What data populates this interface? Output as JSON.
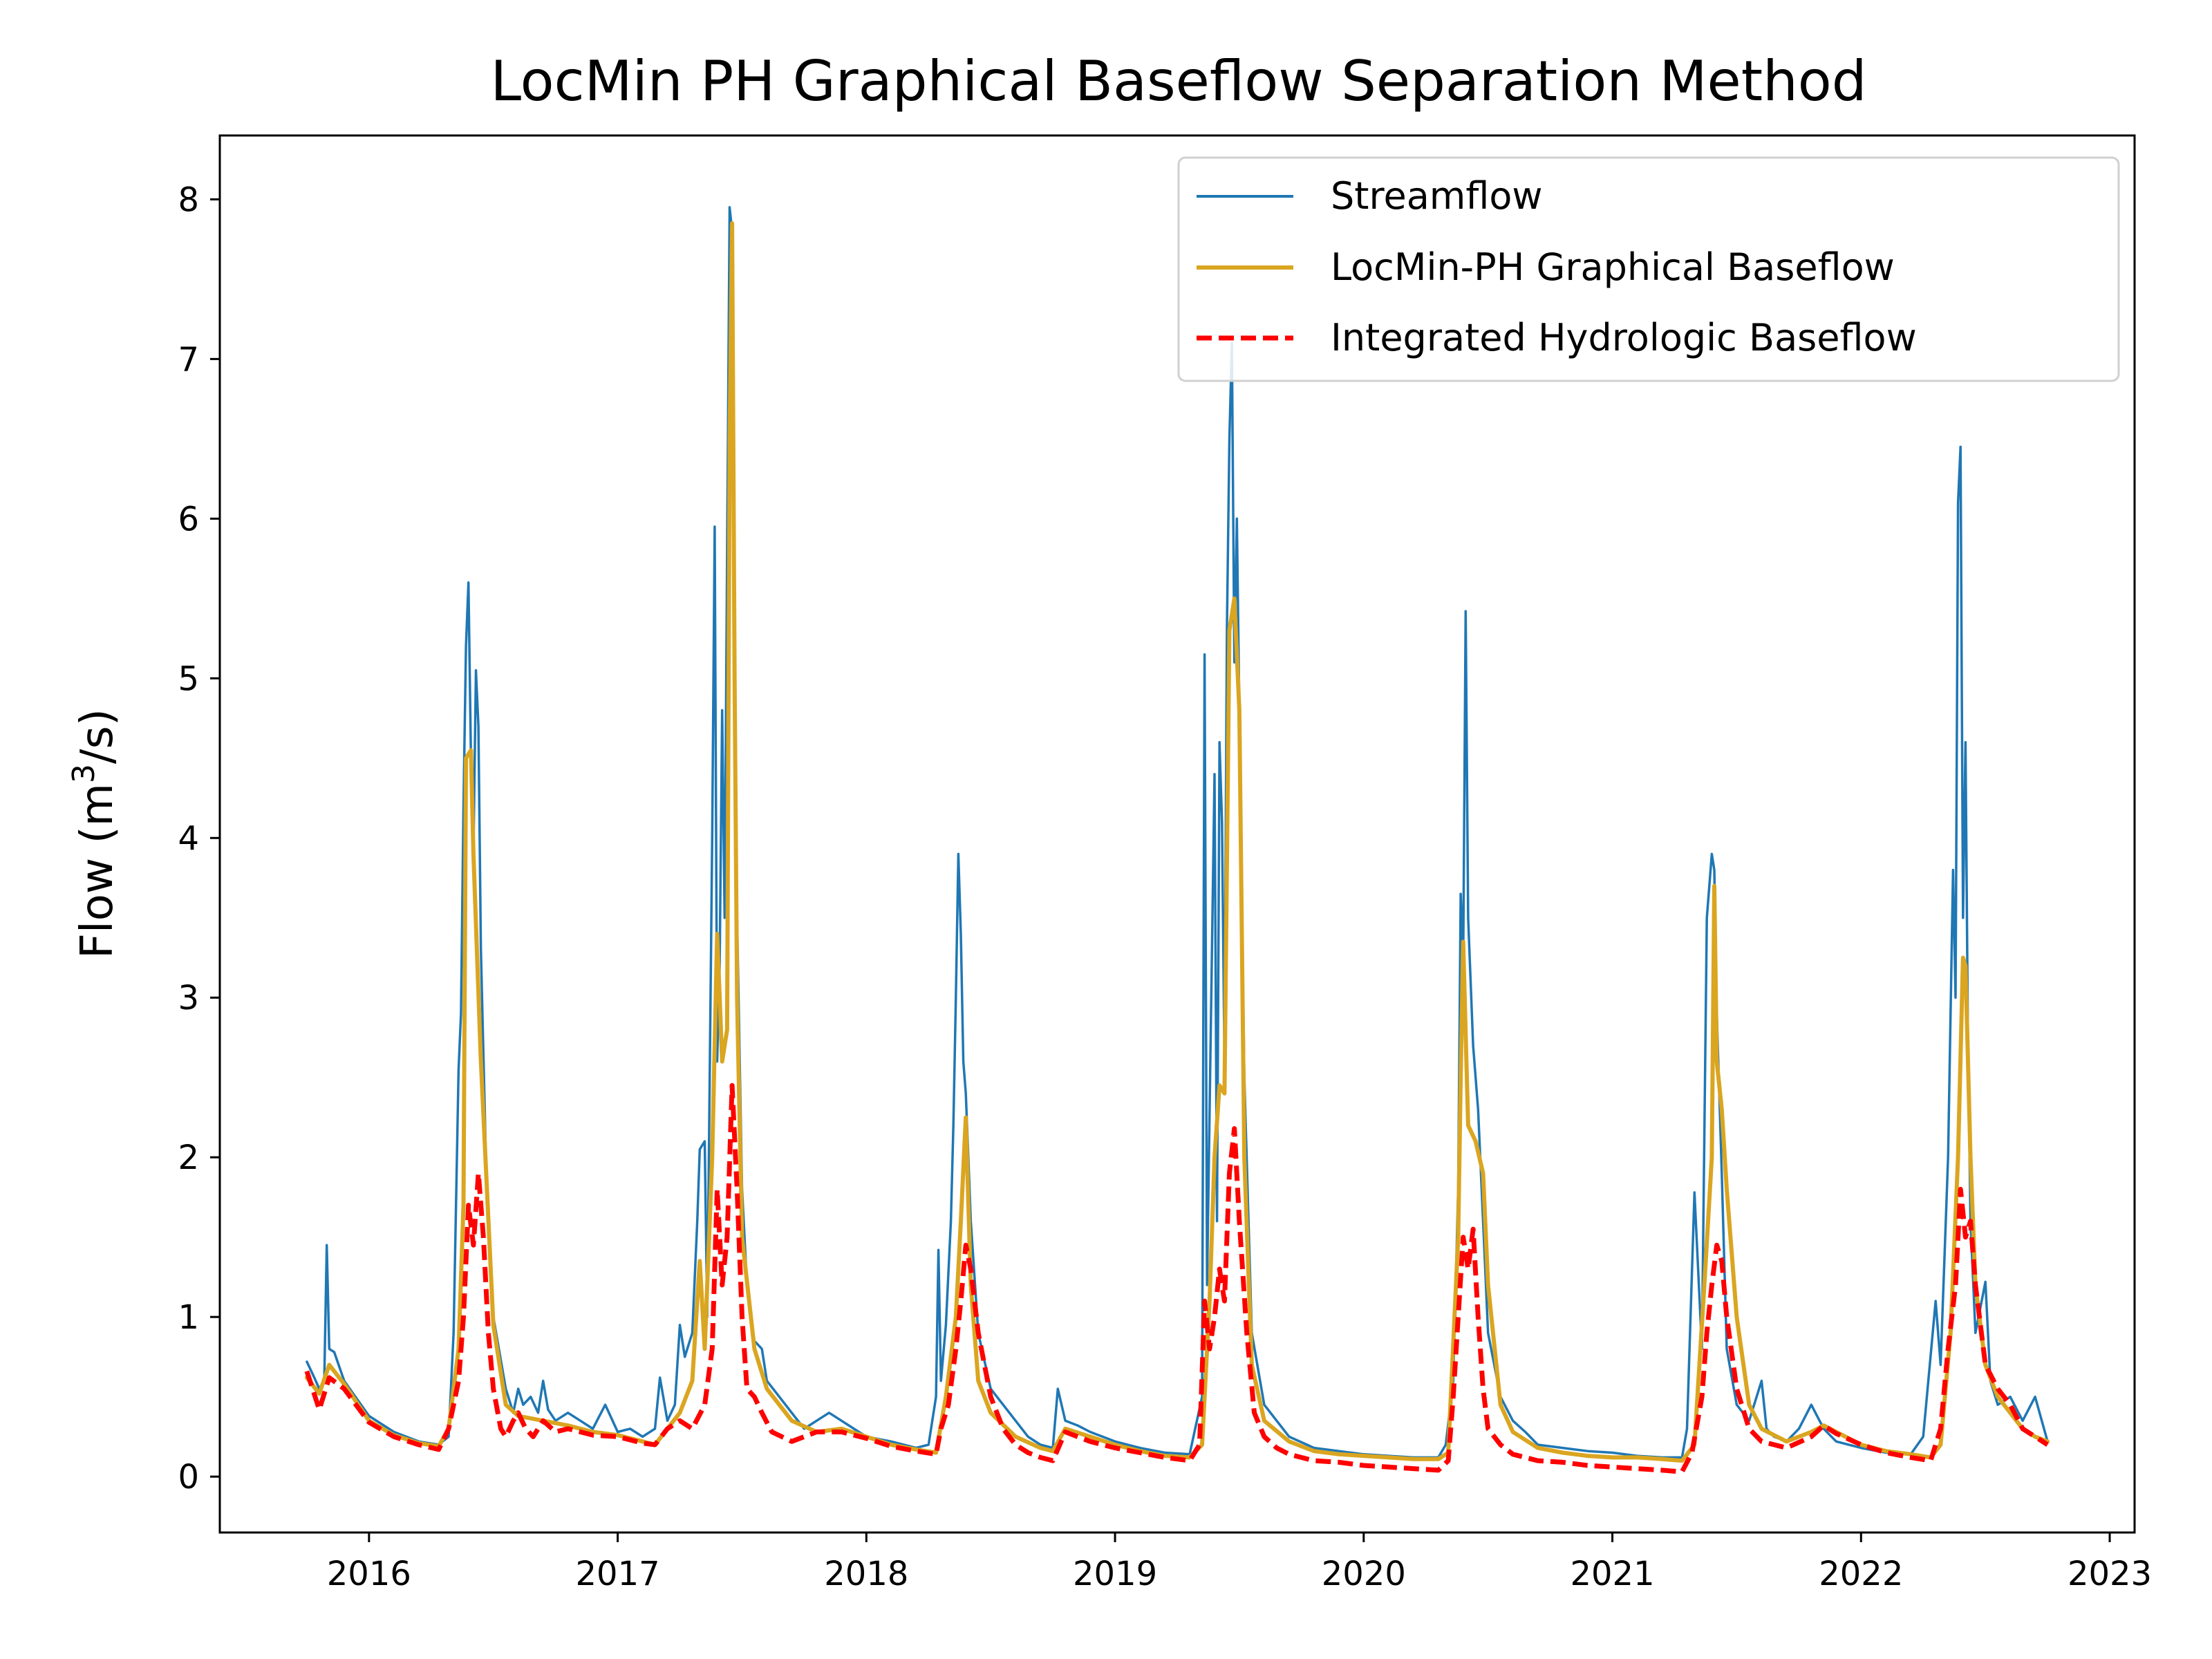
{
  "chart_data": {
    "type": "line",
    "title": "LocMin PH Graphical Baseflow Separation Method",
    "xlabel": "",
    "ylabel": "Flow (m³/s)",
    "ylabel_parts": {
      "before": "Flow (m",
      "sup": "3",
      "after": "/s)"
    },
    "xlim": [
      2015.4,
      2023.1
    ],
    "ylim": [
      -0.35,
      8.4
    ],
    "x_ticks": [
      2016,
      2017,
      2018,
      2019,
      2020,
      2021,
      2022,
      2023
    ],
    "x_tick_labels": [
      "2016",
      "2017",
      "2018",
      "2019",
      "2020",
      "2021",
      "2022",
      "2023"
    ],
    "y_ticks": [
      0,
      1,
      2,
      3,
      4,
      5,
      6,
      7,
      8
    ],
    "y_tick_labels": [
      "0",
      "1",
      "2",
      "3",
      "4",
      "5",
      "6",
      "7",
      "8"
    ],
    "grid": false,
    "legend_position": "top-right",
    "series": [
      {
        "name": "Streamflow",
        "color": "#1f77b4",
        "style": "solid",
        "x": [
          2015.75,
          2015.78,
          2015.8,
          2015.82,
          2015.83,
          2015.84,
          2015.86,
          2015.9,
          2016.0,
          2016.1,
          2016.2,
          2016.28,
          2016.32,
          2016.34,
          2016.36,
          2016.37,
          2016.38,
          2016.39,
          2016.4,
          2016.41,
          2016.42,
          2016.43,
          2016.44,
          2016.45,
          2016.47,
          2016.5,
          2016.55,
          2016.58,
          2016.6,
          2016.62,
          2016.65,
          2016.68,
          2016.7,
          2016.72,
          2016.75,
          2016.8,
          2016.85,
          2016.9,
          2016.95,
          2017.0,
          2017.05,
          2017.1,
          2017.15,
          2017.17,
          2017.2,
          2017.23,
          2017.25,
          2017.27,
          2017.3,
          2017.32,
          2017.33,
          2017.35,
          2017.36,
          2017.38,
          2017.39,
          2017.4,
          2017.41,
          2017.42,
          2017.43,
          2017.44,
          2017.45,
          2017.46,
          2017.47,
          2017.48,
          2017.5,
          2017.52,
          2017.55,
          2017.58,
          2017.6,
          2017.65,
          2017.7,
          2017.75,
          2017.8,
          2017.85,
          2017.9,
          2017.95,
          2018.0,
          2018.1,
          2018.2,
          2018.25,
          2018.28,
          2018.29,
          2018.3,
          2018.32,
          2018.34,
          2018.35,
          2018.36,
          2018.37,
          2018.38,
          2018.39,
          2018.4,
          2018.42,
          2018.45,
          2018.5,
          2018.55,
          2018.6,
          2018.65,
          2018.7,
          2018.75,
          2018.77,
          2018.8,
          2018.85,
          2018.9,
          2019.0,
          2019.1,
          2019.2,
          2019.3,
          2019.35,
          2019.36,
          2019.37,
          2019.4,
          2019.41,
          2019.42,
          2019.43,
          2019.44,
          2019.45,
          2019.46,
          2019.47,
          2019.48,
          2019.49,
          2019.5,
          2019.52,
          2019.55,
          2019.6,
          2019.65,
          2019.7,
          2019.8,
          2019.9,
          2020.0,
          2020.1,
          2020.2,
          2020.3,
          2020.33,
          2020.36,
          2020.38,
          2020.39,
          2020.4,
          2020.41,
          2020.42,
          2020.44,
          2020.46,
          2020.5,
          2020.55,
          2020.6,
          2020.65,
          2020.7,
          2020.8,
          2020.9,
          2021.0,
          2021.1,
          2021.2,
          2021.28,
          2021.3,
          2021.33,
          2021.36,
          2021.38,
          2021.4,
          2021.41,
          2021.42,
          2021.44,
          2021.46,
          2021.5,
          2021.55,
          2021.6,
          2021.62,
          2021.65,
          2021.7,
          2021.75,
          2021.8,
          2021.85,
          2021.9,
          2022.0,
          2022.1,
          2022.2,
          2022.25,
          2022.3,
          2022.32,
          2022.35,
          2022.37,
          2022.38,
          2022.39,
          2022.4,
          2022.41,
          2022.42,
          2022.43,
          2022.44,
          2022.46,
          2022.5,
          2022.52,
          2022.55,
          2022.6,
          2022.65,
          2022.7,
          2022.75
        ],
        "y": [
          0.72,
          0.62,
          0.55,
          0.6,
          1.45,
          0.8,
          0.78,
          0.6,
          0.38,
          0.28,
          0.22,
          0.2,
          0.25,
          0.9,
          2.55,
          2.9,
          4.2,
          5.2,
          5.6,
          4.5,
          3.9,
          5.05,
          4.7,
          3.3,
          2.0,
          1.0,
          0.55,
          0.4,
          0.55,
          0.45,
          0.5,
          0.4,
          0.6,
          0.42,
          0.35,
          0.4,
          0.35,
          0.3,
          0.45,
          0.28,
          0.3,
          0.25,
          0.3,
          0.62,
          0.35,
          0.45,
          0.95,
          0.75,
          0.9,
          1.6,
          2.05,
          2.1,
          1.0,
          4.0,
          5.95,
          2.6,
          3.2,
          4.8,
          3.5,
          5.8,
          7.95,
          7.8,
          5.0,
          3.5,
          1.8,
          1.2,
          0.85,
          0.8,
          0.6,
          0.5,
          0.4,
          0.3,
          0.35,
          0.4,
          0.35,
          0.3,
          0.25,
          0.22,
          0.18,
          0.2,
          0.5,
          1.42,
          0.6,
          0.95,
          1.6,
          2.2,
          3.0,
          3.9,
          3.4,
          2.6,
          2.4,
          1.6,
          0.9,
          0.55,
          0.45,
          0.35,
          0.25,
          0.2,
          0.18,
          0.55,
          0.35,
          0.32,
          0.28,
          0.22,
          0.18,
          0.15,
          0.14,
          0.5,
          5.15,
          1.2,
          4.4,
          1.6,
          4.6,
          4.1,
          2.6,
          5.3,
          6.5,
          7.1,
          5.1,
          6.0,
          4.8,
          2.5,
          0.9,
          0.45,
          0.35,
          0.25,
          0.18,
          0.16,
          0.14,
          0.13,
          0.12,
          0.12,
          0.2,
          0.6,
          1.8,
          3.65,
          3.2,
          5.42,
          3.5,
          2.7,
          2.3,
          0.9,
          0.5,
          0.35,
          0.28,
          0.2,
          0.18,
          0.16,
          0.15,
          0.13,
          0.12,
          0.12,
          0.3,
          1.78,
          0.8,
          3.5,
          3.9,
          3.8,
          2.9,
          1.9,
          0.8,
          0.45,
          0.35,
          0.6,
          0.3,
          0.25,
          0.22,
          0.3,
          0.45,
          0.3,
          0.22,
          0.18,
          0.15,
          0.14,
          0.25,
          1.1,
          0.7,
          2.0,
          3.8,
          3.0,
          6.1,
          6.45,
          3.5,
          4.6,
          2.7,
          1.6,
          0.9,
          1.22,
          0.6,
          0.45,
          0.5,
          0.35,
          0.5,
          0.22
        ]
      },
      {
        "name": "LocMin-PH Graphical Baseflow",
        "color": "#daa520",
        "style": "solid",
        "x": [
          2015.75,
          2015.8,
          2015.84,
          2015.9,
          2016.0,
          2016.1,
          2016.2,
          2016.28,
          2016.32,
          2016.36,
          2016.38,
          2016.39,
          2016.41,
          2016.42,
          2016.45,
          2016.5,
          2016.55,
          2016.6,
          2016.7,
          2016.8,
          2016.9,
          2017.0,
          2017.1,
          2017.15,
          2017.2,
          2017.25,
          2017.3,
          2017.33,
          2017.35,
          2017.38,
          2017.4,
          2017.42,
          2017.44,
          2017.45,
          2017.46,
          2017.47,
          2017.48,
          2017.5,
          2017.55,
          2017.6,
          2017.7,
          2017.8,
          2017.9,
          2018.0,
          2018.1,
          2018.2,
          2018.28,
          2018.32,
          2018.36,
          2018.38,
          2018.4,
          2018.42,
          2018.45,
          2018.5,
          2018.6,
          2018.7,
          2018.75,
          2018.8,
          2018.9,
          2019.0,
          2019.1,
          2019.2,
          2019.3,
          2019.35,
          2019.38,
          2019.4,
          2019.42,
          2019.44,
          2019.46,
          2019.48,
          2019.5,
          2019.52,
          2019.55,
          2019.6,
          2019.7,
          2019.8,
          2019.9,
          2020.0,
          2020.1,
          2020.2,
          2020.3,
          2020.34,
          2020.38,
          2020.39,
          2020.4,
          2020.42,
          2020.45,
          2020.48,
          2020.5,
          2020.55,
          2020.6,
          2020.7,
          2020.8,
          2020.9,
          2021.0,
          2021.1,
          2021.2,
          2021.28,
          2021.33,
          2021.37,
          2021.4,
          2021.41,
          2021.42,
          2021.44,
          2021.46,
          2021.5,
          2021.55,
          2021.6,
          2021.7,
          2021.8,
          2021.85,
          2021.9,
          2022.0,
          2022.1,
          2022.2,
          2022.28,
          2022.32,
          2022.36,
          2022.39,
          2022.41,
          2022.42,
          2022.44,
          2022.46,
          2022.5,
          2022.55,
          2022.6,
          2022.65,
          2022.7,
          2022.75
        ],
        "y": [
          0.62,
          0.52,
          0.7,
          0.58,
          0.35,
          0.26,
          0.21,
          0.19,
          0.3,
          0.8,
          1.7,
          4.5,
          4.55,
          3.9,
          2.6,
          0.95,
          0.45,
          0.38,
          0.35,
          0.32,
          0.28,
          0.26,
          0.22,
          0.2,
          0.3,
          0.4,
          0.6,
          1.35,
          0.8,
          2.0,
          3.4,
          2.6,
          2.8,
          6.5,
          7.85,
          5.0,
          3.0,
          1.5,
          0.8,
          0.55,
          0.35,
          0.28,
          0.3,
          0.25,
          0.2,
          0.17,
          0.15,
          0.5,
          1.0,
          1.6,
          2.25,
          1.2,
          0.6,
          0.4,
          0.25,
          0.18,
          0.16,
          0.3,
          0.25,
          0.2,
          0.16,
          0.13,
          0.12,
          0.2,
          1.1,
          2.0,
          2.45,
          2.4,
          5.3,
          5.5,
          4.8,
          2.0,
          0.7,
          0.35,
          0.22,
          0.16,
          0.14,
          0.13,
          0.12,
          0.11,
          0.11,
          0.15,
          1.5,
          2.5,
          3.35,
          2.2,
          2.1,
          1.9,
          1.2,
          0.45,
          0.28,
          0.18,
          0.15,
          0.13,
          0.12,
          0.12,
          0.11,
          0.1,
          0.2,
          1.2,
          2.0,
          3.7,
          2.6,
          2.3,
          1.8,
          1.0,
          0.45,
          0.3,
          0.22,
          0.28,
          0.32,
          0.28,
          0.2,
          0.16,
          0.14,
          0.12,
          0.2,
          0.9,
          2.0,
          3.25,
          3.2,
          2.0,
          1.2,
          0.7,
          0.5,
          0.4,
          0.3,
          0.25,
          0.22
        ]
      },
      {
        "name": "Integrated Hydrologic Baseflow",
        "color": "#ff0000",
        "style": "dashed",
        "x": [
          2015.75,
          2015.8,
          2015.84,
          2015.9,
          2016.0,
          2016.1,
          2016.2,
          2016.28,
          2016.32,
          2016.36,
          2016.38,
          2016.4,
          2016.42,
          2016.44,
          2016.46,
          2016.48,
          2016.5,
          2016.53,
          2016.55,
          2016.58,
          2016.6,
          2016.63,
          2016.66,
          2016.7,
          2016.75,
          2016.8,
          2016.9,
          2017.0,
          2017.1,
          2017.15,
          2017.2,
          2017.25,
          2017.3,
          2017.35,
          2017.38,
          2017.4,
          2017.42,
          2017.44,
          2017.46,
          2017.48,
          2017.5,
          2017.52,
          2017.55,
          2017.58,
          2017.62,
          2017.66,
          2017.7,
          2017.8,
          2017.9,
          2018.0,
          2018.1,
          2018.2,
          2018.28,
          2018.3,
          2018.33,
          2018.36,
          2018.38,
          2018.4,
          2018.42,
          2018.45,
          2018.5,
          2018.55,
          2018.6,
          2018.65,
          2018.7,
          2018.75,
          2018.8,
          2018.9,
          2019.0,
          2019.1,
          2019.2,
          2019.3,
          2019.34,
          2019.36,
          2019.38,
          2019.4,
          2019.42,
          2019.44,
          2019.46,
          2019.48,
          2019.5,
          2019.53,
          2019.56,
          2019.6,
          2019.65,
          2019.7,
          2019.8,
          2019.9,
          2020.0,
          2020.1,
          2020.2,
          2020.3,
          2020.34,
          2020.36,
          2020.38,
          2020.4,
          2020.42,
          2020.44,
          2020.46,
          2020.48,
          2020.5,
          2020.55,
          2020.6,
          2020.7,
          2020.8,
          2020.9,
          2021.0,
          2021.1,
          2021.2,
          2021.28,
          2021.32,
          2021.36,
          2021.38,
          2021.4,
          2021.42,
          2021.44,
          2021.46,
          2021.5,
          2021.55,
          2021.6,
          2021.7,
          2021.8,
          2021.85,
          2021.9,
          2022.0,
          2022.1,
          2022.2,
          2022.28,
          2022.32,
          2022.35,
          2022.38,
          2022.4,
          2022.42,
          2022.44,
          2022.46,
          2022.5,
          2022.55,
          2022.6,
          2022.65,
          2022.7,
          2022.75
        ],
        "y": [
          0.66,
          0.42,
          0.62,
          0.55,
          0.34,
          0.25,
          0.2,
          0.17,
          0.3,
          0.6,
          1.0,
          1.7,
          1.45,
          1.9,
          1.5,
          0.9,
          0.55,
          0.3,
          0.25,
          0.35,
          0.4,
          0.3,
          0.25,
          0.35,
          0.28,
          0.3,
          0.26,
          0.25,
          0.21,
          0.2,
          0.3,
          0.35,
          0.3,
          0.45,
          0.8,
          1.8,
          1.2,
          1.5,
          2.45,
          1.8,
          1.0,
          0.55,
          0.5,
          0.4,
          0.28,
          0.25,
          0.22,
          0.28,
          0.28,
          0.24,
          0.19,
          0.16,
          0.14,
          0.3,
          0.45,
          0.8,
          1.1,
          1.45,
          1.3,
          0.9,
          0.5,
          0.3,
          0.2,
          0.15,
          0.12,
          0.1,
          0.28,
          0.22,
          0.18,
          0.15,
          0.12,
          0.1,
          0.2,
          1.1,
          0.8,
          1.0,
          1.3,
          1.1,
          1.9,
          2.18,
          1.6,
          0.9,
          0.4,
          0.25,
          0.18,
          0.14,
          0.1,
          0.09,
          0.07,
          0.06,
          0.05,
          0.04,
          0.1,
          0.5,
          1.0,
          1.5,
          1.3,
          1.55,
          1.0,
          0.55,
          0.3,
          0.2,
          0.14,
          0.1,
          0.09,
          0.07,
          0.06,
          0.05,
          0.04,
          0.03,
          0.15,
          0.5,
          0.9,
          1.2,
          1.45,
          1.35,
          1.0,
          0.55,
          0.3,
          0.22,
          0.18,
          0.25,
          0.32,
          0.27,
          0.2,
          0.15,
          0.12,
          0.1,
          0.3,
          0.8,
          1.2,
          1.8,
          1.5,
          1.6,
          1.2,
          0.7,
          0.55,
          0.45,
          0.3,
          0.25,
          0.2
        ]
      }
    ]
  }
}
